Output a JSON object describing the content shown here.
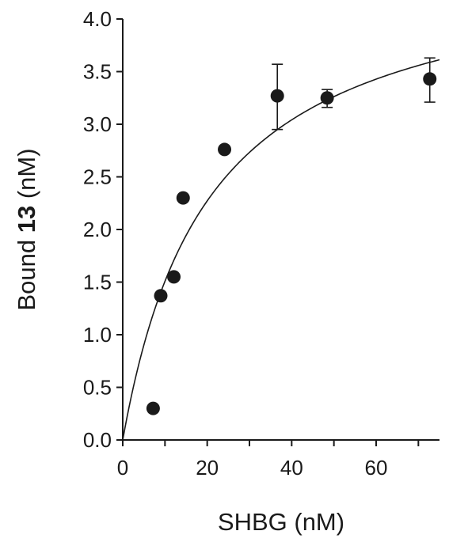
{
  "chart_data": {
    "type": "scatter",
    "xlabel": "SHBG (nM)",
    "ylabel_parts": [
      "Bound ",
      "13",
      " (nM)"
    ],
    "xlim": [
      0,
      75
    ],
    "ylim": [
      0,
      4.0
    ],
    "x_ticks": [
      0,
      20,
      40,
      60
    ],
    "x_ticks_labels": [
      "0",
      "20",
      "40",
      "60"
    ],
    "x_minor_ticks": [
      10,
      30,
      50,
      70
    ],
    "y_ticks": [
      0,
      0.5,
      1.0,
      1.5,
      2.0,
      2.5,
      3.0,
      3.5,
      4.0
    ],
    "y_ticks_labels": [
      "0.0",
      "0.5",
      "1.0",
      "1.5",
      "2.0",
      "2.5",
      "3.0",
      "3.5",
      "4.0"
    ],
    "grid": false,
    "legend": "none",
    "series": [
      {
        "points": [
          {
            "x": 7.2,
            "y": 0.3
          },
          {
            "x": 9.0,
            "y": 1.37
          },
          {
            "x": 12.1,
            "y": 1.55
          },
          {
            "x": 14.3,
            "y": 2.3
          },
          {
            "x": 24.1,
            "y": 2.76
          },
          {
            "x": 36.6,
            "y": 3.27,
            "err": [
              2.95,
              3.57
            ]
          },
          {
            "x": 48.4,
            "y": 3.25,
            "err": [
              3.16,
              3.33
            ]
          },
          {
            "x": 72.7,
            "y": 3.43,
            "err": [
              3.21,
              3.63
            ]
          }
        ]
      }
    ],
    "fit_curve": {
      "model": "hyperbolic",
      "bmax": 4.6,
      "kd": 20.5
    },
    "colors": {
      "ink": "#1a1a1a"
    }
  }
}
